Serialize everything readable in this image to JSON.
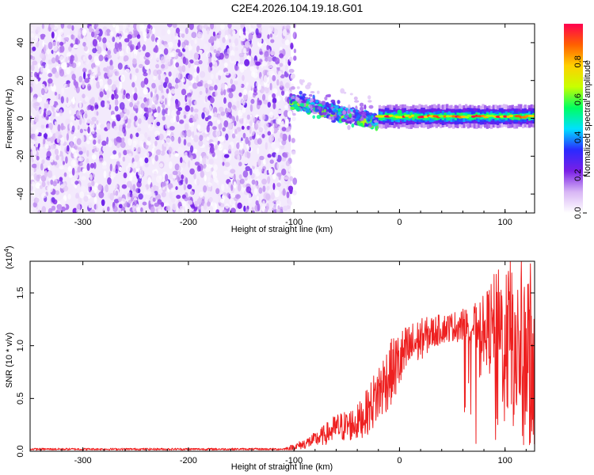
{
  "title": "C2E4.2026.104.19.18.G01",
  "chart_data": [
    {
      "type": "heatmap",
      "name": "spectrogram",
      "xlabel": "Height of straight line (km)",
      "ylabel": "Frequency (Hz)",
      "xlim": [
        -350,
        128
      ],
      "ylim": [
        -50,
        50
      ],
      "xticks": [
        -300,
        -200,
        -100,
        0,
        100
      ],
      "yticks": [
        -40,
        -20,
        0,
        20,
        40
      ],
      "colorbar": {
        "label": "Normalized spectral amplitude",
        "range": [
          0.0,
          1.0
        ],
        "ticks": [
          "0.0",
          "0.2",
          "0.4",
          "0.6",
          "0.8"
        ],
        "colors": [
          "#ffffff",
          "#d8b6f5",
          "#7a1fe6",
          "#2a2aff",
          "#00e0ff",
          "#00ff60",
          "#c8ff00",
          "#ffd000",
          "#ff6000",
          "#ff0050"
        ]
      },
      "regions": [
        {
          "x_from": -350,
          "x_to": -103,
          "freq_from": -50,
          "freq_to": 50,
          "description": "broadband noise",
          "amplitude_max": 0.25
        },
        {
          "x_from": -103,
          "x_to": -20,
          "freq_center_start": 7,
          "freq_center_end": -4,
          "amplitude_max": 0.6
        },
        {
          "x_from": -20,
          "x_to": 128,
          "freq_center": 1,
          "amplitude_max": 1.0
        }
      ]
    },
    {
      "type": "line",
      "name": "snr",
      "xlabel": "Height of straight line (km)",
      "ylabel": "SNR (10 * v/v)",
      "y_multiplier": "(x10^4)",
      "xlim": [
        -350,
        128
      ],
      "ylim": [
        0,
        1.8
      ],
      "xticks": [
        -300,
        -200,
        -100,
        0,
        100
      ],
      "yticks": [
        "0.0",
        "0.5",
        "1.0",
        "1.5"
      ],
      "color": "#ee2020",
      "series": [
        {
          "name": "SNR",
          "x": [
            -350,
            -250,
            -110,
            -100,
            -90,
            -80,
            -70,
            -60,
            -50,
            -40,
            -30,
            -20,
            -10,
            0,
            10,
            20,
            30,
            40,
            50,
            60,
            70,
            80,
            90,
            100,
            110,
            120,
            128
          ],
          "y": [
            0.02,
            0.02,
            0.02,
            0.04,
            0.07,
            0.11,
            0.16,
            0.22,
            0.24,
            0.27,
            0.38,
            0.55,
            0.72,
            0.85,
            0.98,
            1.06,
            1.12,
            1.16,
            1.18,
            1.19,
            1.19,
            1.18,
            1.14,
            1.08,
            1.0,
            0.9,
            0.9
          ],
          "spread": [
            0.01,
            0.01,
            0.01,
            0.03,
            0.05,
            0.07,
            0.1,
            0.14,
            0.15,
            0.17,
            0.22,
            0.3,
            0.32,
            0.3,
            0.24,
            0.2,
            0.16,
            0.14,
            0.14,
            0.16,
            0.2,
            0.3,
            0.55,
            0.75,
            0.85,
            0.9,
            0.8
          ],
          "peak_x": 124,
          "peak_y": 1.78
        }
      ]
    }
  ]
}
